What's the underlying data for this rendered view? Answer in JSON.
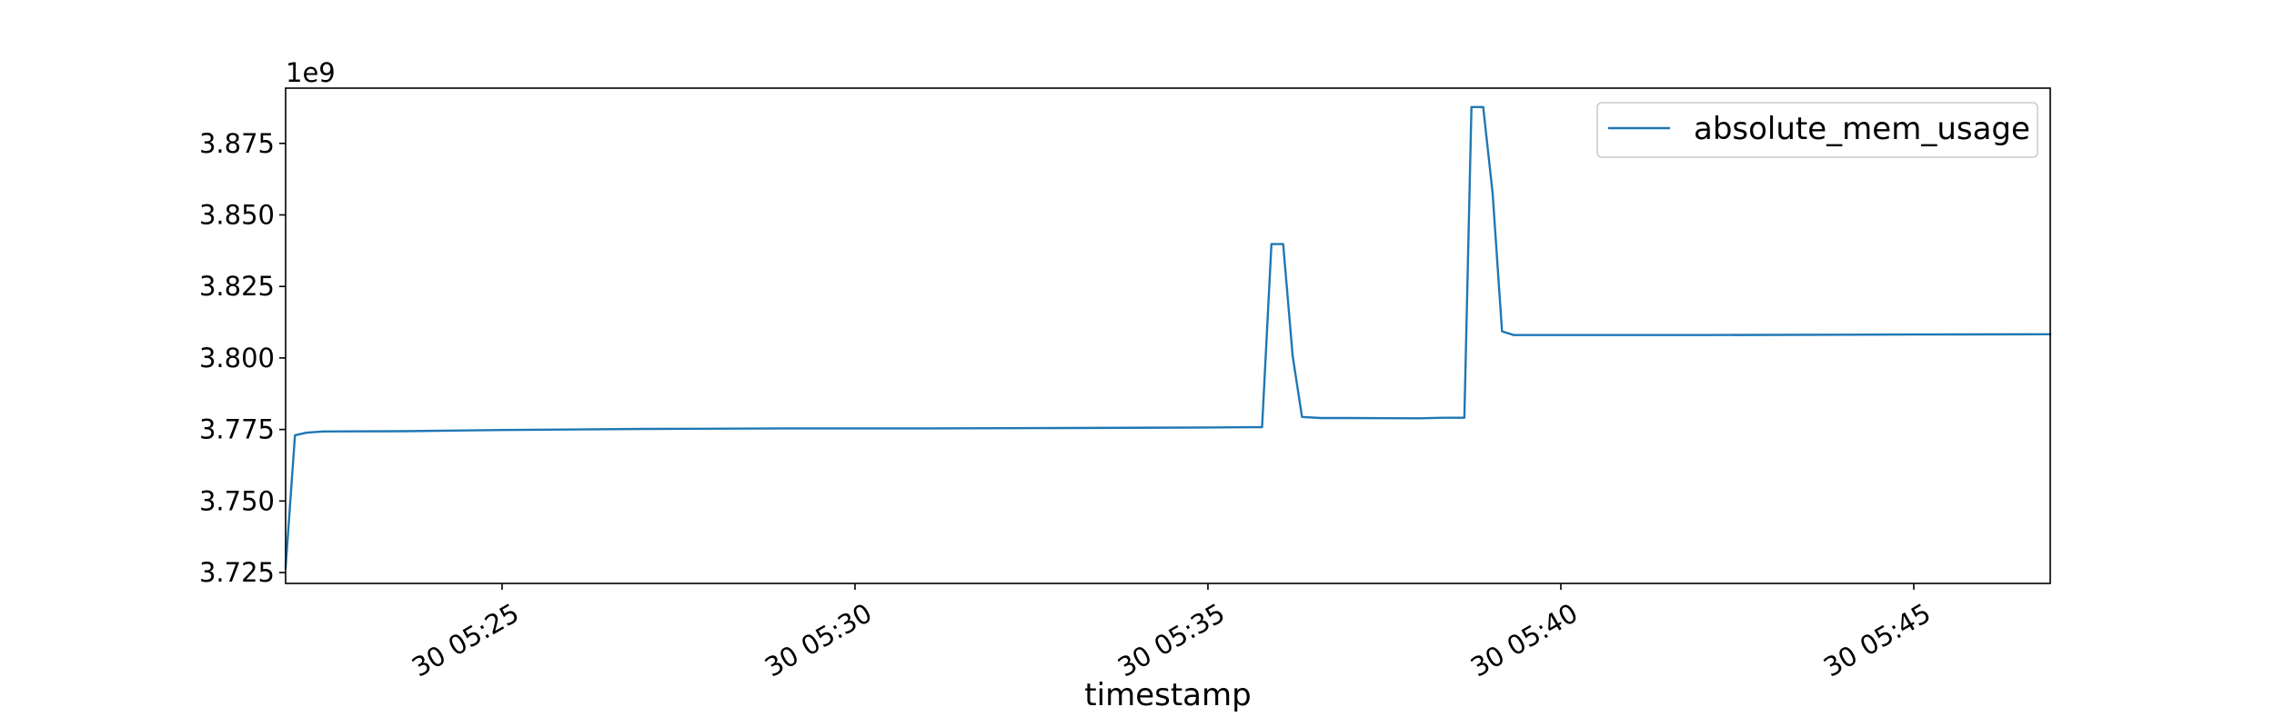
{
  "chart_data": {
    "type": "line",
    "title": "",
    "xlabel": "timestamp",
    "ylabel": "",
    "y_offset_label": "1e9",
    "y_scale_factor": 1000000000,
    "x_range_minutes": [
      0,
      25.0
    ],
    "xlim": [
      "30 05:21:56",
      "30 05:46:56"
    ],
    "ylim": [
      3.7212,
      3.8943
    ],
    "x_ticks": [
      {
        "label": "30 05:25",
        "value": "30 05:25:00"
      },
      {
        "label": "30 05:30",
        "value": "30 05:30:00"
      },
      {
        "label": "30 05:35",
        "value": "30 05:35:00"
      },
      {
        "label": "30 05:40",
        "value": "30 05:40:00"
      },
      {
        "label": "30 05:45",
        "value": "30 05:45:00"
      }
    ],
    "y_ticks": [
      {
        "label": "3.725",
        "value": 3.725
      },
      {
        "label": "3.750",
        "value": 3.75
      },
      {
        "label": "3.775",
        "value": 3.775
      },
      {
        "label": "3.800",
        "value": 3.8
      },
      {
        "label": "3.825",
        "value": 3.825
      },
      {
        "label": "3.850",
        "value": 3.85
      },
      {
        "label": "3.875",
        "value": 3.875
      }
    ],
    "grid": false,
    "legend_position": "top-right",
    "series": [
      {
        "name": "absolute_mem_usage",
        "color": "#1f77b4",
        "x": [
          "30 05:21:56",
          "30 05:22:04",
          "30 05:22:14",
          "30 05:22:28",
          "30 05:23:36",
          "30 05:25:00",
          "30 05:27:00",
          "30 05:29:00",
          "30 05:31:00",
          "30 05:33:00",
          "30 05:35:00",
          "30 05:35:36",
          "30 05:35:46",
          "30 05:35:54",
          "30 05:36:04",
          "30 05:36:12",
          "30 05:36:20",
          "30 05:36:36",
          "30 05:37:00",
          "30 05:38:00",
          "30 05:38:20",
          "30 05:38:38",
          "30 05:38:44",
          "30 05:38:54",
          "30 05:39:02",
          "30 05:39:10",
          "30 05:39:20",
          "30 05:42:00",
          "30 05:45:00",
          "30 05:46:56"
        ],
        "y": [
          3.7267,
          3.773,
          3.7739,
          3.7743,
          3.7744,
          3.7748,
          3.7752,
          3.7754,
          3.7754,
          3.7755,
          3.7757,
          3.7758,
          3.7758,
          3.8398,
          3.8398,
          3.8008,
          3.7794,
          3.779,
          3.779,
          3.7789,
          3.7791,
          3.7791,
          3.8877,
          3.8877,
          3.8575,
          3.8093,
          3.808,
          3.808,
          3.8082,
          3.8083
        ]
      }
    ]
  }
}
